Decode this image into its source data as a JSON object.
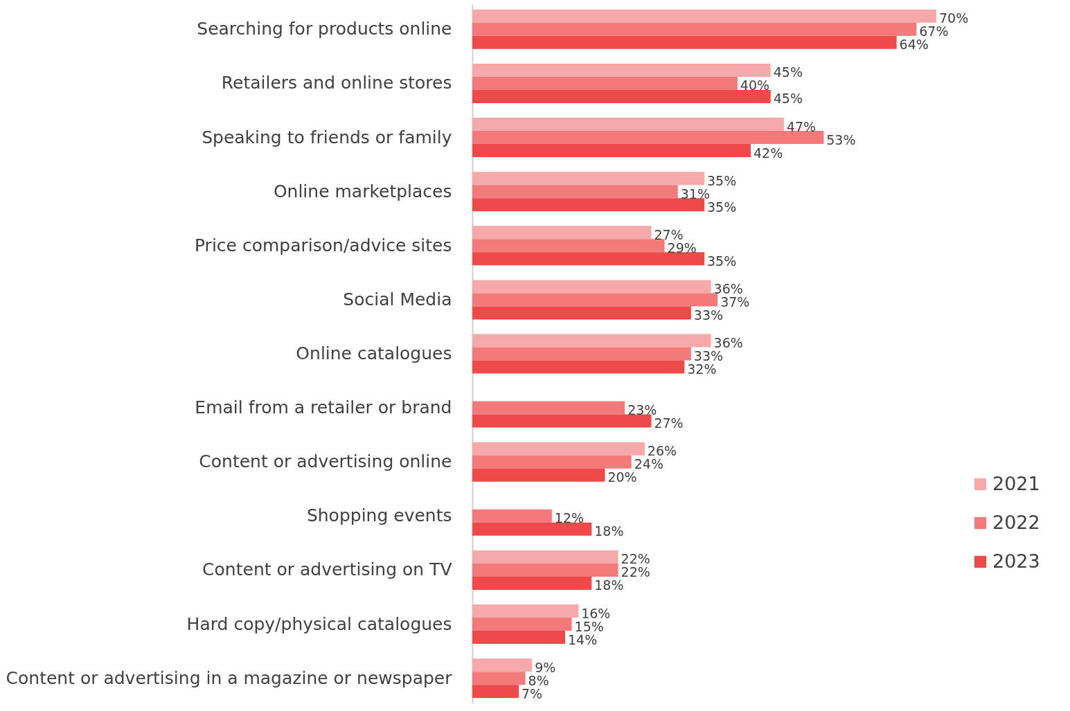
{
  "chart_data": {
    "type": "bar",
    "orientation": "horizontal",
    "categories": [
      "Searching for products online",
      "Retailers and online stores",
      "Speaking to friends or family",
      "Online marketplaces",
      "Price comparison/advice sites",
      "Social Media",
      "Online catalogues",
      "Email from a retailer or brand",
      "Content or advertising online",
      "Shopping events",
      "Content or advertising on TV",
      "Hard copy/physical catalogues",
      "Content or advertising in a magazine or newspaper"
    ],
    "series": [
      {
        "name": "2021",
        "color": "#f6a9a9",
        "values": [
          70,
          45,
          47,
          35,
          27,
          36,
          36,
          null,
          26,
          null,
          22,
          16,
          9
        ],
        "value_labels": [
          "70%",
          "45%",
          "47%",
          "35%",
          "27%",
          "36%",
          "36%",
          null,
          "26%",
          null,
          "22%",
          "16%",
          "9%"
        ]
      },
      {
        "name": "2022",
        "color": "#f27a7a",
        "values": [
          67,
          40,
          53,
          31,
          29,
          37,
          33,
          23,
          24,
          12,
          22,
          15,
          8
        ],
        "value_labels": [
          "67%",
          "40%",
          "53%",
          "31%",
          "29%",
          "37%",
          "33%",
          "23%",
          "24%",
          "12%",
          "22%",
          "15%",
          "8%"
        ]
      },
      {
        "name": "2023",
        "color": "#ef4a4a",
        "values": [
          64,
          45,
          42,
          35,
          35,
          33,
          32,
          27,
          20,
          18,
          18,
          14,
          7
        ],
        "value_labels": [
          "64%",
          "45%",
          "42%",
          "35%",
          "35%",
          "33%",
          "32%",
          "27%",
          "20%",
          "18%",
          "18%",
          "14%",
          "7%"
        ]
      }
    ],
    "legend": "right"
  }
}
